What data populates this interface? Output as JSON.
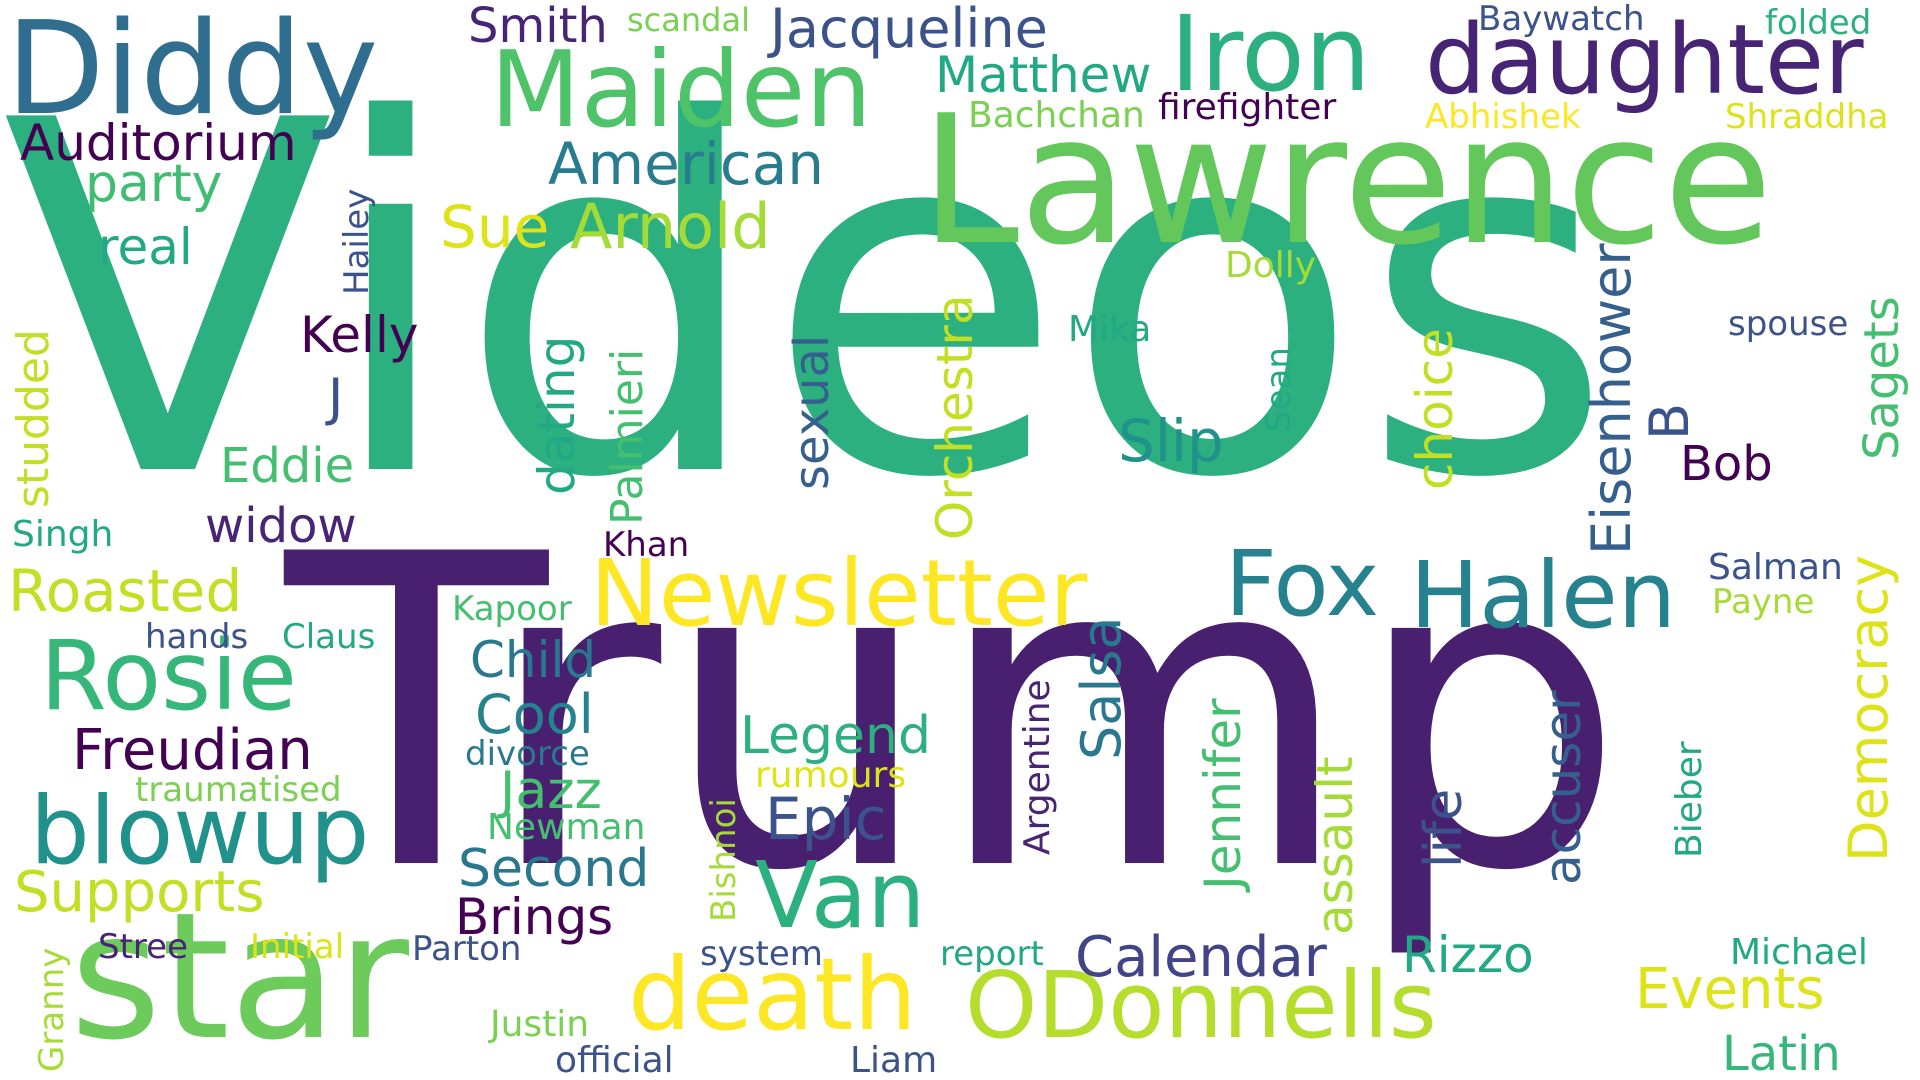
{
  "palette": {
    "dark_purple": "#440154",
    "purple": "#482475",
    "indigo": "#414487",
    "slate_blue": "#355f8d",
    "teal_blue": "#2a788e",
    "teal": "#21918c",
    "green_teal": "#22a884",
    "green": "#44bf70",
    "light_green": "#7ad151",
    "lime": "#bddf26",
    "yellow": "#fde725"
  },
  "words": {
    "videos": "Videos",
    "trump": "Trump",
    "lawrence": "Lawrence",
    "diddy": "Diddy",
    "iron": "Iron",
    "maiden": "Maiden",
    "daughter": "daughter",
    "star": "star",
    "odonnells": "ODonnells",
    "death": "death",
    "newsletter": "Newsletter",
    "halen": "Halen",
    "fox": "Fox",
    "van": "Van",
    "rosie": "Rosie",
    "blowup": "blowup",
    "american": "American",
    "jacqueline": "Jacqueline",
    "matthew": "Matthew",
    "smith": "Smith",
    "scandal": "scandal",
    "baywatch": "Baywatch",
    "folded": "folded",
    "firefighter": "firefighter",
    "bachchan": "Bachchan",
    "abhishek": "Abhishek",
    "shraddha": "Shraddha",
    "auditorium": "Auditorium",
    "party": "party",
    "real": "real",
    "sue": "Sue",
    "arnold": "Arnold",
    "hailey": "Hailey",
    "dolly": "Dolly",
    "mika": "Mika",
    "spouse": "spouse",
    "sagets": "Sagets",
    "kelly": "Kelly",
    "j": "J",
    "studded": "studded",
    "eddie": "Eddie",
    "widow": "widow",
    "singh": "Singh",
    "dating": "dating",
    "palmieri": "Palmieri",
    "sexual": "sexual",
    "orchestra": "Orchestra",
    "slip": "Slip",
    "sean": "Sean",
    "choice": "choice",
    "eisenhower": "Eisenhower",
    "b": "B",
    "bob": "Bob",
    "democracy": "Democracy",
    "khan": "Khan",
    "roasted": "Roasted",
    "kapoor": "Kapoor",
    "hands": "hands",
    "claus": "Claus",
    "child": "Child",
    "cool": "Cool",
    "freudian": "Freudian",
    "divorce": "divorce",
    "jazz": "Jazz",
    "traumatised": "traumatised",
    "newman": "Newman",
    "supports": "Supports",
    "second": "Second",
    "brings": "Brings",
    "legend": "Legend",
    "rumours": "rumours",
    "epic": "Epic",
    "salsa": "Salsa",
    "argentine": "Argentine",
    "jennifer": "Jennifer",
    "assault": "assault",
    "life": "life",
    "accuser": "accuser",
    "salman": "Salman",
    "payne": "Payne",
    "bieber": "Bieber",
    "bishnoi": "Bishnoi",
    "calendar": "Calendar",
    "rizzo": "Rizzo",
    "events": "Events",
    "michael": "Michael",
    "latin": "Latin",
    "stree": "Stree",
    "initial": "Initial",
    "parton": "Parton",
    "system": "system",
    "report": "report",
    "granny": "Granny",
    "justin": "Justin",
    "official": "official",
    "liam": "Liam"
  }
}
